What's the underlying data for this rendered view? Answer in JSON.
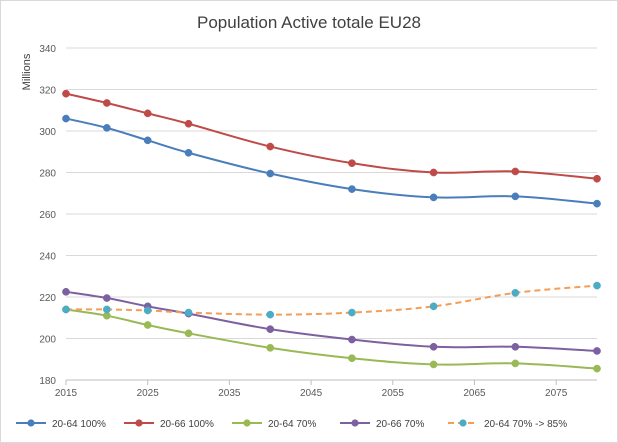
{
  "chart_data": {
    "type": "line",
    "title": "Population Active totale EU28",
    "xlabel": "",
    "ylabel": "Millions",
    "xlim": [
      2015,
      2080
    ],
    "ylim": [
      180,
      340
    ],
    "x_ticks": [
      "2015",
      "2025",
      "2035",
      "2045",
      "2055",
      "2065",
      "2075"
    ],
    "y_ticks": [
      "180",
      "200",
      "220",
      "240",
      "260",
      "280",
      "300",
      "320",
      "340"
    ],
    "grid": "horizontal",
    "legend_position": "bottom",
    "series": [
      {
        "name": "20-64 100%",
        "color": "#4a7ebb",
        "dashed": false,
        "x": [
          2015,
          2020,
          2025,
          2030,
          2040,
          2050,
          2060,
          2070,
          2080
        ],
        "values": [
          306,
          301.5,
          295.5,
          289.5,
          279.5,
          272,
          268,
          268.5,
          265
        ]
      },
      {
        "name": "20-66 100%",
        "color": "#be4b48",
        "dashed": false,
        "x": [
          2015,
          2020,
          2025,
          2030,
          2040,
          2050,
          2060,
          2070,
          2080
        ],
        "values": [
          318,
          313.5,
          308.5,
          303.5,
          292.5,
          284.5,
          280,
          280.5,
          277
        ]
      },
      {
        "name": "20-64 70%",
        "color": "#98b954",
        "dashed": false,
        "x": [
          2015,
          2020,
          2025,
          2030,
          2040,
          2050,
          2060,
          2070,
          2080
        ],
        "values": [
          214,
          211,
          206.5,
          202.5,
          195.5,
          190.5,
          187.5,
          188,
          185.5
        ]
      },
      {
        "name": "20-66 70%",
        "color": "#7d60a0",
        "dashed": false,
        "x": [
          2015,
          2020,
          2025,
          2030,
          2040,
          2050,
          2060,
          2070,
          2080
        ],
        "values": [
          222.5,
          219.5,
          215.5,
          212,
          204.5,
          199.5,
          196,
          196,
          194
        ]
      },
      {
        "name": "20-64 70% -> 85%",
        "color": "#f59d56",
        "marker_color": "#4bacc6",
        "dashed": true,
        "x": [
          2015,
          2020,
          2025,
          2030,
          2040,
          2050,
          2060,
          2070,
          2080
        ],
        "values": [
          214,
          214,
          213.5,
          212.5,
          211.5,
          212.5,
          215.5,
          222,
          225.5
        ]
      }
    ]
  }
}
